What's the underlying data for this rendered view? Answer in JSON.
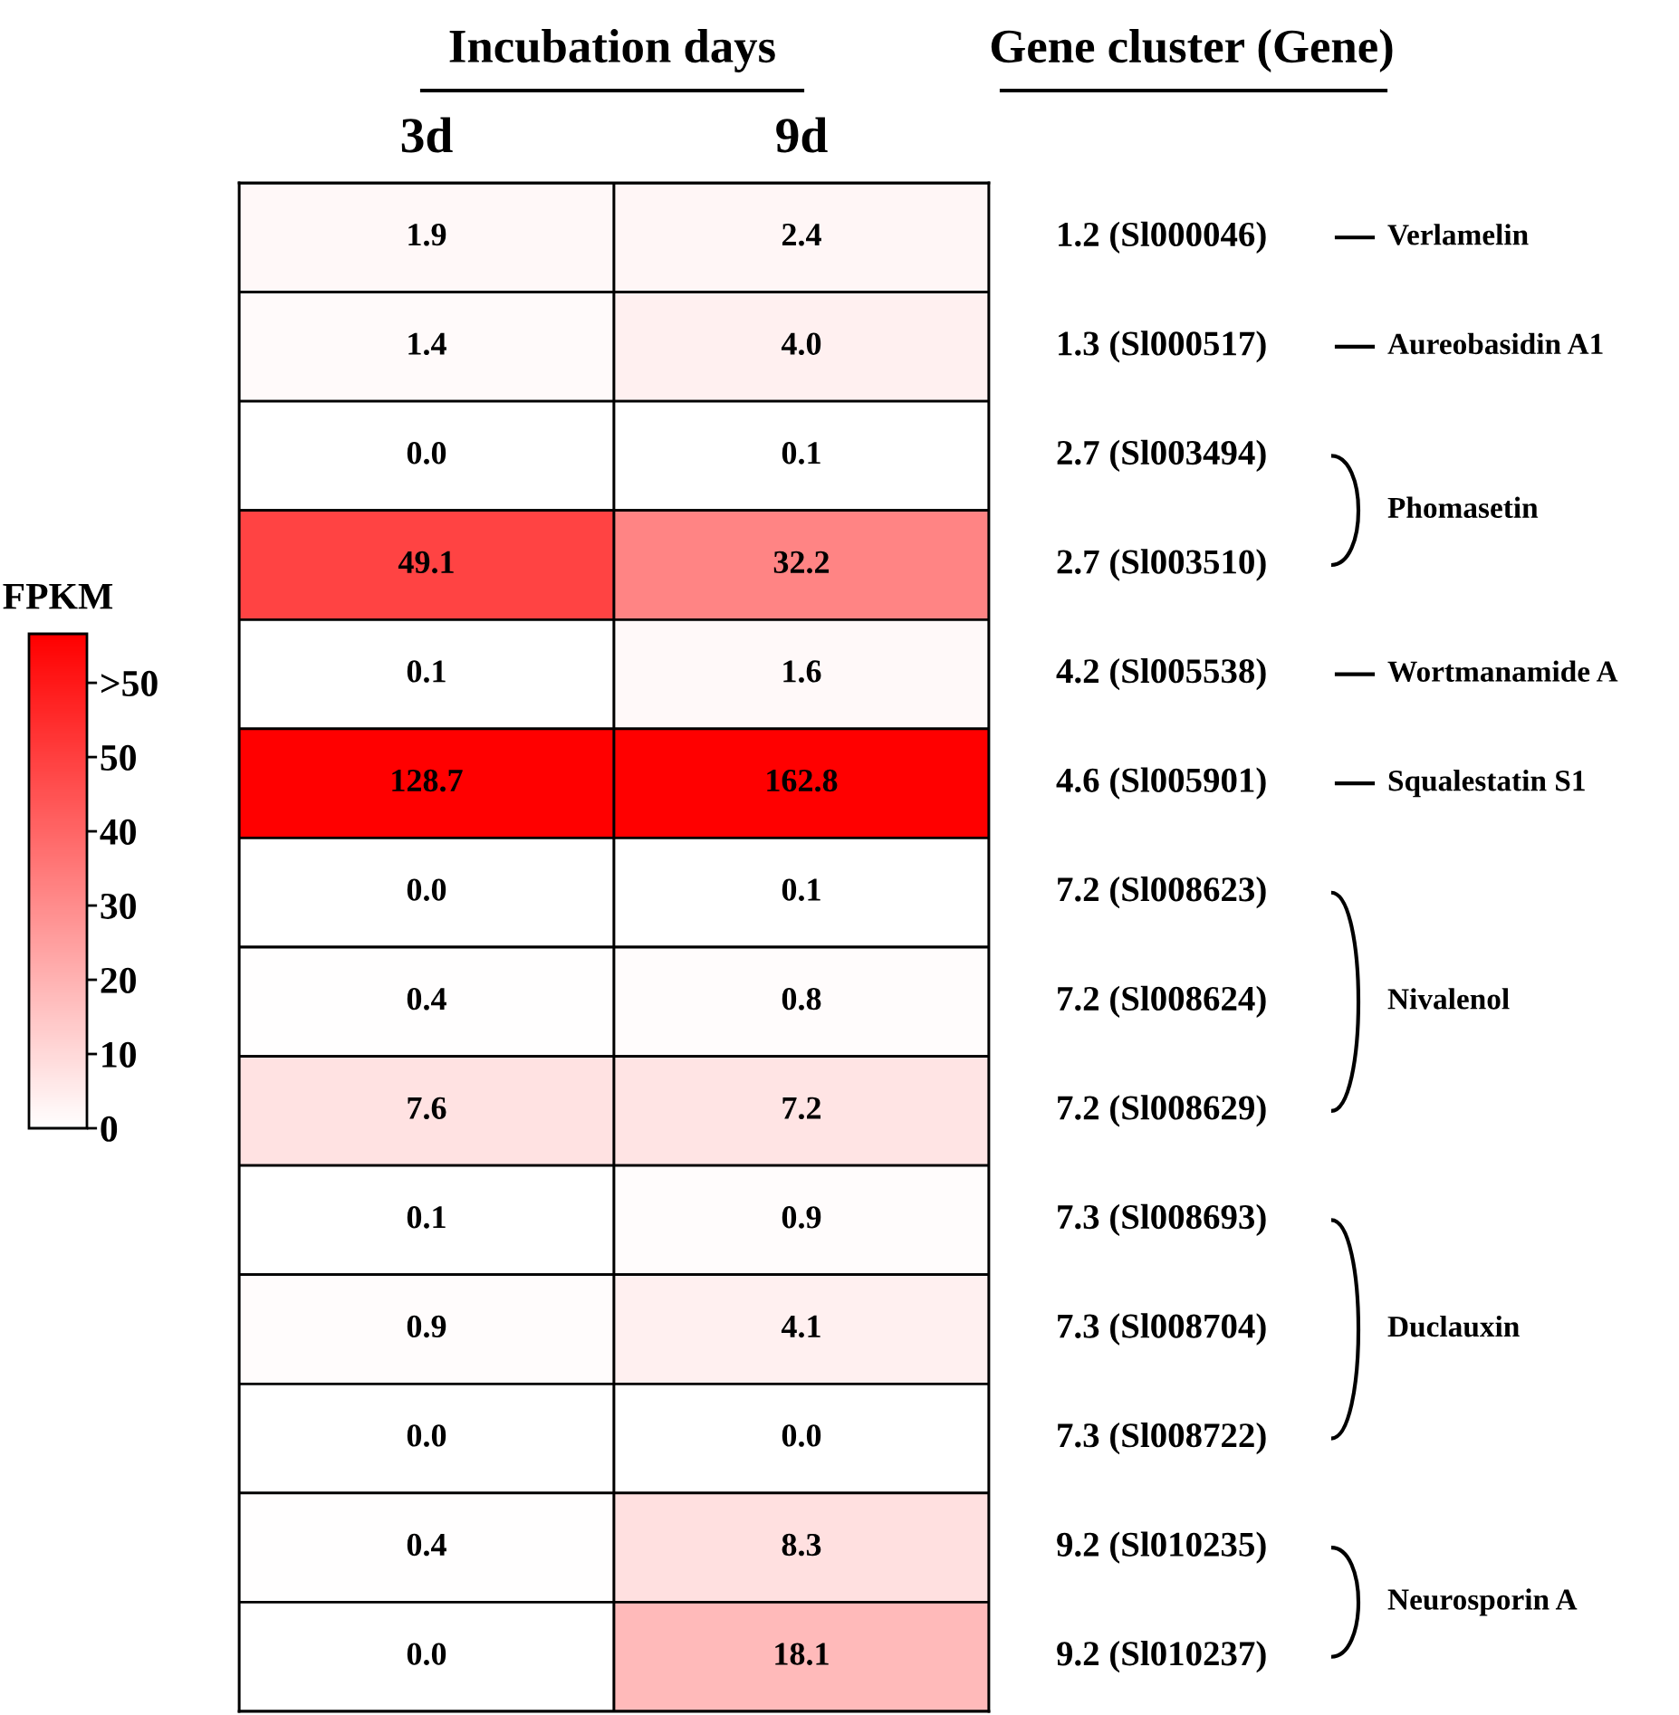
{
  "chart_data": {
    "type": "heatmap",
    "xlabel": "Incubation days",
    "y2label": "Gene cluster (Gene)",
    "clabel": "FPKM",
    "categories": [
      "3d",
      "9d"
    ],
    "y_categories": [
      "1.2 (Sl000046)",
      "1.3 (Sl000517)",
      "2.7 (Sl003494)",
      "2.7 (Sl003510)",
      "4.2 (Sl005538)",
      "4.6 (Sl005901)",
      "7.2 (Sl008623)",
      "7.2 (Sl008624)",
      "7.2 (Sl008629)",
      "7.3 (Sl008693)",
      "7.3 (Sl008704)",
      "7.3 (Sl008722)",
      "9.2 (Sl010235)",
      "9.2 (Sl010237)"
    ],
    "cells": [
      [
        1.9,
        2.4
      ],
      [
        1.4,
        4.0
      ],
      [
        0.0,
        0.1
      ],
      [
        49.1,
        32.2
      ],
      [
        0.1,
        1.6
      ],
      [
        128.7,
        162.8
      ],
      [
        0.0,
        0.1
      ],
      [
        0.4,
        0.8
      ],
      [
        7.6,
        7.2
      ],
      [
        0.1,
        0.9
      ],
      [
        0.9,
        4.1
      ],
      [
        0.0,
        0.0
      ],
      [
        0.4,
        8.3
      ],
      [
        0.0,
        18.1
      ]
    ],
    "cell_labels": [
      [
        "1.9",
        "2.4"
      ],
      [
        "1.4",
        "4.0"
      ],
      [
        "0.0",
        "0.1"
      ],
      [
        "49.1",
        "32.2"
      ],
      [
        "0.1",
        "1.6"
      ],
      [
        "128.7",
        "162.8"
      ],
      [
        "0.0",
        "0.1"
      ],
      [
        "0.4",
        "0.8"
      ],
      [
        "7.6",
        "7.2"
      ],
      [
        "0.1",
        "0.9"
      ],
      [
        "0.9",
        "4.1"
      ],
      [
        "0.0",
        "0.0"
      ],
      [
        "0.4",
        "8.3"
      ],
      [
        "0.0",
        "18.1"
      ]
    ],
    "clim": [
      0,
      66.6
    ],
    "cticks": [
      0,
      10,
      20,
      30,
      40,
      50,
      {
        "value": 60,
        "label": ">50"
      }
    ],
    "annotations": [
      "Verlamelin",
      "Aureobasidin A1",
      "Phomasetin",
      "Wortmanamide A",
      "Squalestatin S1",
      "Nivalenol",
      "Duclauxin",
      "Neurosporin A"
    ]
  }
}
